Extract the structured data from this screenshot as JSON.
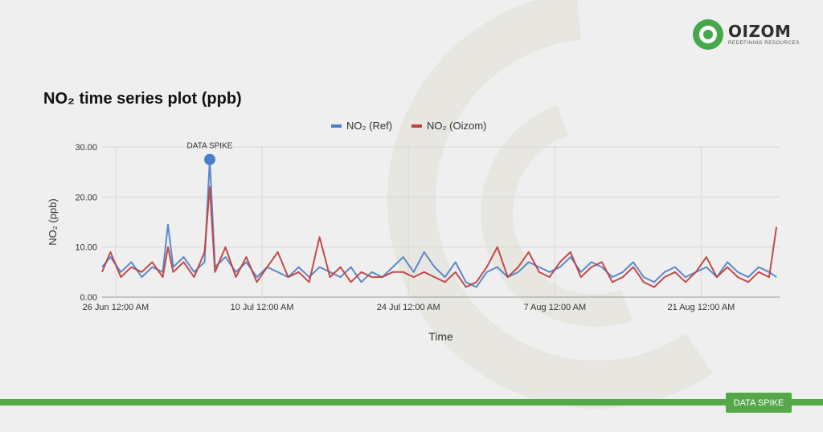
{
  "brand": {
    "name": "OIZOM",
    "tagline": "REDEFINING RESOURCES"
  },
  "footer": {
    "badge": "DATA SPIKE"
  },
  "colors": {
    "ref": "#4a7ec9",
    "oizom": "#c0403e",
    "accent": "#55a848"
  },
  "chart_data": {
    "type": "line",
    "title": "NO₂ time series plot (ppb)",
    "xlabel": "Time",
    "ylabel": "NO₂ (ppb)",
    "ylim": [
      0,
      30
    ],
    "y_ticks": [
      "0.00",
      "10.00",
      "20.00",
      "30.00"
    ],
    "x_ticks": [
      "26 Jun 12:00 AM",
      "10 Jul 12:00 AM",
      "24 Jul 12:00 AM",
      "7 Aug 12:00 AM",
      "21 Aug 12:00 AM"
    ],
    "x_range_days": [
      -1.3,
      63.5
    ],
    "x_tick_days": [
      0,
      14,
      28,
      42,
      56
    ],
    "grid": true,
    "legend_position": "top",
    "series": [
      {
        "name": "NO₂ (Ref)",
        "x_days": [
          -1.3,
          -0.5,
          0.5,
          1.5,
          2.5,
          3.5,
          4.5,
          5,
          5.5,
          6.5,
          7.5,
          8.5,
          9,
          9.5,
          10.5,
          11.5,
          12.5,
          13.5,
          14.5,
          15.5,
          16.5,
          17.5,
          18.5,
          19.5,
          20.5,
          21.5,
          22.5,
          23.5,
          24.5,
          25.5,
          26.5,
          27.5,
          28.5,
          29.5,
          30.5,
          31.5,
          32.5,
          33.5,
          34.5,
          35.5,
          36.5,
          37.5,
          38.5,
          39.5,
          40.5,
          41.5,
          42.5,
          43.5,
          44.5,
          45.5,
          46.5,
          47.5,
          48.5,
          49.5,
          50.5,
          51.5,
          52.5,
          53.5,
          54.5,
          55.5,
          56.5,
          57.5,
          58.5,
          59.5,
          60.5,
          61.5,
          62.5,
          63.2
        ],
        "values": [
          6,
          8,
          5,
          7,
          4,
          6,
          5,
          14.5,
          6,
          8,
          5,
          7,
          27.5,
          6,
          8,
          5,
          7,
          4,
          6,
          5,
          4,
          6,
          4,
          6,
          5,
          4,
          6,
          3,
          5,
          4,
          6,
          8,
          5,
          9,
          6,
          4,
          7,
          3,
          2,
          5,
          6,
          4,
          5,
          7,
          6,
          5,
          6,
          8,
          5,
          7,
          6,
          4,
          5,
          7,
          4,
          3,
          5,
          6,
          4,
          5,
          6,
          4,
          7,
          5,
          4,
          6,
          5,
          4
        ]
      },
      {
        "name": "NO₂ (Oizom)",
        "x_days": [
          -1.3,
          -0.5,
          0.5,
          1.5,
          2.5,
          3.5,
          4.5,
          5,
          5.5,
          6.5,
          7.5,
          8.5,
          9,
          9.5,
          10.5,
          11.5,
          12.5,
          13.5,
          14.5,
          15.5,
          16.5,
          17.5,
          18.5,
          19.5,
          20.5,
          21.5,
          22.5,
          23.5,
          24.5,
          25.5,
          26.5,
          27.5,
          28.5,
          29.5,
          30.5,
          31.5,
          32.5,
          33.5,
          34.5,
          35.5,
          36.5,
          37.5,
          38.5,
          39.5,
          40.5,
          41.5,
          42.5,
          43.5,
          44.5,
          45.5,
          46.5,
          47.5,
          48.5,
          49.5,
          50.5,
          51.5,
          52.5,
          53.5,
          54.5,
          55.5,
          56.5,
          57.5,
          58.5,
          59.5,
          60.5,
          61.5,
          62.5,
          63.2
        ],
        "values": [
          5,
          9,
          4,
          6,
          5,
          7,
          4,
          10,
          5,
          7,
          4,
          9,
          22,
          5,
          10,
          4,
          8,
          3,
          6,
          9,
          4,
          5,
          3,
          12,
          4,
          6,
          3,
          5,
          4,
          4,
          5,
          5,
          4,
          5,
          4,
          3,
          5,
          2,
          3,
          6,
          10,
          4,
          6,
          9,
          5,
          4,
          7,
          9,
          4,
          6,
          7,
          3,
          4,
          6,
          3,
          2,
          4,
          5,
          3,
          5,
          8,
          4,
          6,
          4,
          3,
          5,
          4,
          14
        ]
      }
    ],
    "annotations": [
      {
        "text": "DATA SPIKE",
        "x_day": 9,
        "y": 27.5
      }
    ]
  }
}
